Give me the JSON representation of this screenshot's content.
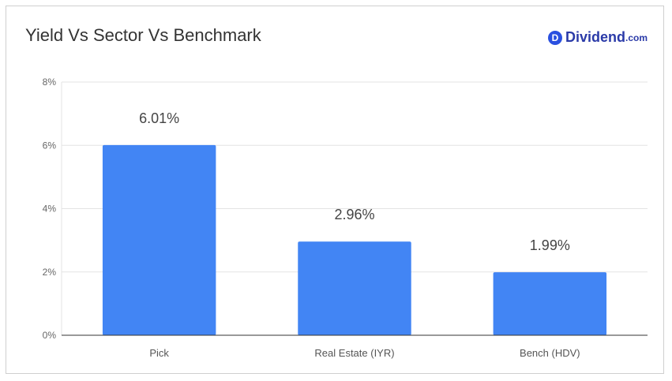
{
  "header": {
    "title": "Yield Vs Sector Vs Benchmark",
    "brand_mark": "D",
    "brand_name": "Dividend",
    "brand_suffix": ".com"
  },
  "colors": {
    "bar": "#4285f4",
    "grid": "#e3e3e3",
    "axis": "#333333",
    "brand": "#2a50e0"
  },
  "chart_data": {
    "type": "bar",
    "title": "Yield Vs Sector Vs Benchmark",
    "categories": [
      "Pick",
      "Real Estate (IYR)",
      "Bench (HDV)"
    ],
    "values": [
      6.01,
      2.96,
      1.99
    ],
    "data_labels": [
      "6.01%",
      "2.96%",
      "1.99%"
    ],
    "yticks": [
      0,
      2,
      4,
      6,
      8
    ],
    "ytick_labels": [
      "0%",
      "2%",
      "4%",
      "6%",
      "8%"
    ],
    "ylim": [
      0,
      8
    ],
    "xlabel": "",
    "ylabel": "",
    "grid": true,
    "legend": "none"
  }
}
